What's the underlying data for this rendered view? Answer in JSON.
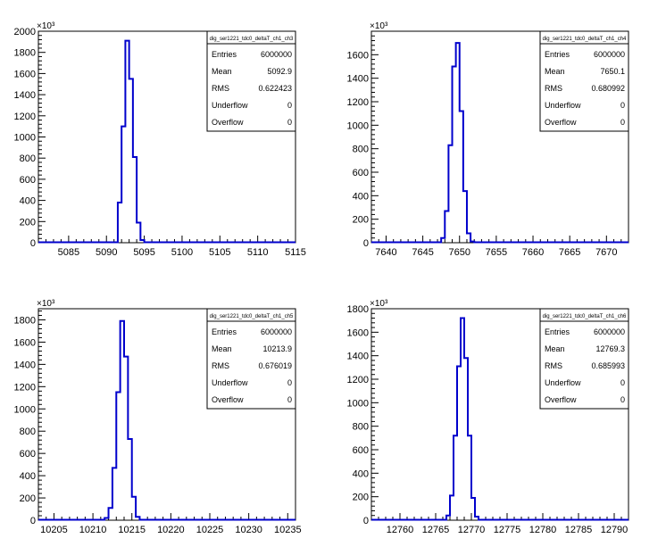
{
  "chart_data": [
    {
      "type": "histogram",
      "stats_title": "dig_ser1221_tdc0_deltaT_ch1_ch3",
      "exponent_label": "×10³",
      "stats": [
        {
          "label": "Entries",
          "value": "6000000"
        },
        {
          "label": "Mean",
          "value": "5092.9"
        },
        {
          "label": "RMS",
          "value": "0.622423"
        },
        {
          "label": "Underflow",
          "value": "0"
        },
        {
          "label": "Overflow",
          "value": "0"
        }
      ],
      "xlim": [
        5081,
        5115
      ],
      "ylim": [
        0,
        2000
      ],
      "x_ticks": [
        5085,
        5090,
        5095,
        5100,
        5105,
        5110,
        5115
      ],
      "y_ticks": [
        0,
        200,
        400,
        600,
        800,
        1000,
        1200,
        1400,
        1600,
        1800,
        2000
      ],
      "bins": [
        {
          "x0": 5091.5,
          "x1": 5092.0,
          "y": 380
        },
        {
          "x0": 5092.0,
          "x1": 5092.5,
          "y": 1100
        },
        {
          "x0": 5092.5,
          "x1": 5093.0,
          "y": 1910
        },
        {
          "x0": 5093.0,
          "x1": 5093.5,
          "y": 1550
        },
        {
          "x0": 5093.5,
          "x1": 5094.0,
          "y": 810
        },
        {
          "x0": 5094.0,
          "x1": 5094.5,
          "y": 190
        },
        {
          "x0": 5094.5,
          "x1": 5095.0,
          "y": 25
        }
      ]
    },
    {
      "type": "histogram",
      "stats_title": "dig_ser1221_tdc0_deltaT_ch1_ch4",
      "exponent_label": "×10³",
      "stats": [
        {
          "label": "Entries",
          "value": "6000000"
        },
        {
          "label": "Mean",
          "value": "7650.1"
        },
        {
          "label": "RMS",
          "value": "0.680992"
        },
        {
          "label": "Underflow",
          "value": "0"
        },
        {
          "label": "Overflow",
          "value": "0"
        }
      ],
      "xlim": [
        7638,
        7673
      ],
      "ylim": [
        0,
        1800
      ],
      "x_ticks": [
        7640,
        7645,
        7650,
        7655,
        7660,
        7665,
        7670
      ],
      "y_ticks": [
        0,
        200,
        400,
        600,
        800,
        1000,
        1200,
        1400,
        1600
      ],
      "bins": [
        {
          "x0": 7647.5,
          "x1": 7648.0,
          "y": 40
        },
        {
          "x0": 7648.0,
          "x1": 7648.5,
          "y": 270
        },
        {
          "x0": 7648.5,
          "x1": 7649.0,
          "y": 830
        },
        {
          "x0": 7649.0,
          "x1": 7649.5,
          "y": 1500
        },
        {
          "x0": 7649.5,
          "x1": 7650.0,
          "y": 1700
        },
        {
          "x0": 7650.0,
          "x1": 7650.5,
          "y": 1120
        },
        {
          "x0": 7650.5,
          "x1": 7651.0,
          "y": 440
        },
        {
          "x0": 7651.0,
          "x1": 7651.5,
          "y": 80
        },
        {
          "x0": 7651.5,
          "x1": 7652.0,
          "y": 10
        }
      ]
    },
    {
      "type": "histogram",
      "stats_title": "dig_ser1221_tdc0_deltaT_ch1_ch5",
      "exponent_label": "×10³",
      "stats": [
        {
          "label": "Entries",
          "value": "6000000"
        },
        {
          "label": "Mean",
          "value": "10213.9"
        },
        {
          "label": "RMS",
          "value": "0.676019"
        },
        {
          "label": "Underflow",
          "value": "0"
        },
        {
          "label": "Overflow",
          "value": "0"
        }
      ],
      "xlim": [
        10203,
        10236
      ],
      "ylim": [
        0,
        1900
      ],
      "x_ticks": [
        10205,
        10210,
        10215,
        10220,
        10225,
        10230,
        10235
      ],
      "y_ticks": [
        0,
        200,
        400,
        600,
        800,
        1000,
        1200,
        1400,
        1600,
        1800
      ],
      "bins": [
        {
          "x0": 10211.5,
          "x1": 10212.0,
          "y": 20
        },
        {
          "x0": 10212.0,
          "x1": 10212.5,
          "y": 110
        },
        {
          "x0": 10212.5,
          "x1": 10213.0,
          "y": 470
        },
        {
          "x0": 10213.0,
          "x1": 10213.5,
          "y": 1150
        },
        {
          "x0": 10213.5,
          "x1": 10214.0,
          "y": 1790
        },
        {
          "x0": 10214.0,
          "x1": 10214.5,
          "y": 1470
        },
        {
          "x0": 10214.5,
          "x1": 10215.0,
          "y": 730
        },
        {
          "x0": 10215.0,
          "x1": 10215.5,
          "y": 210
        },
        {
          "x0": 10215.5,
          "x1": 10216.0,
          "y": 30
        }
      ]
    },
    {
      "type": "histogram",
      "stats_title": "dig_ser1221_tdc0_deltaT_ch1_ch6",
      "exponent_label": "×10³",
      "stats": [
        {
          "label": "Entries",
          "value": "6000000"
        },
        {
          "label": "Mean",
          "value": "12769.3"
        },
        {
          "label": "RMS",
          "value": "0.685993"
        },
        {
          "label": "Underflow",
          "value": "0"
        },
        {
          "label": "Overflow",
          "value": "0"
        }
      ],
      "xlim": [
        12756,
        12792
      ],
      "ylim": [
        0,
        1800
      ],
      "x_ticks": [
        12760,
        12765,
        12770,
        12775,
        12780,
        12785,
        12790
      ],
      "y_ticks": [
        0,
        200,
        400,
        600,
        800,
        1000,
        1200,
        1400,
        1600,
        1800
      ],
      "bins": [
        {
          "x0": 12766.5,
          "x1": 12767.0,
          "y": 40
        },
        {
          "x0": 12767.0,
          "x1": 12767.5,
          "y": 210
        },
        {
          "x0": 12767.5,
          "x1": 12768.0,
          "y": 720
        },
        {
          "x0": 12768.0,
          "x1": 12768.5,
          "y": 1310
        },
        {
          "x0": 12768.5,
          "x1": 12769.0,
          "y": 1720
        },
        {
          "x0": 12769.0,
          "x1": 12769.5,
          "y": 1380
        },
        {
          "x0": 12769.5,
          "x1": 12770.0,
          "y": 720
        },
        {
          "x0": 12770.0,
          "x1": 12770.5,
          "y": 190
        },
        {
          "x0": 12770.5,
          "x1": 12771.0,
          "y": 30
        }
      ]
    }
  ]
}
